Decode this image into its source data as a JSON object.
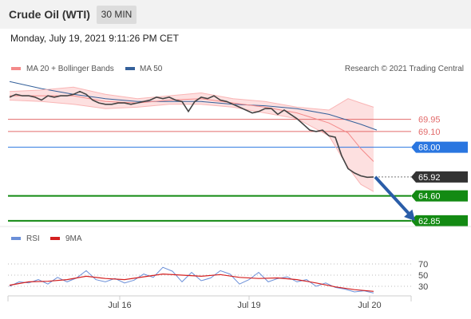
{
  "header": {
    "instrument": "Crude Oil (WTI)",
    "timeframe": "30 MIN"
  },
  "date_line": "Monday, July 19, 2021 9:11:26 PM CET",
  "colors": {
    "price": "#444444",
    "bollinger": "#f48a8a",
    "bollinger_fill": "#fde0e0",
    "ma50": "#34609a",
    "resistance": "#e26b6b",
    "pivot": "#2a76e0",
    "support": "#138a13",
    "arrow": "#2a5da8",
    "rsi": "#6b8fd8",
    "rsi_ma": "#d42020"
  },
  "chart_data": [
    {
      "type": "line",
      "legend": [
        {
          "name": "MA 20 + Bollinger Bands",
          "color": "#f48a8a"
        },
        {
          "name": "MA 50",
          "color": "#34609a"
        }
      ],
      "copyright": "Research © 2021 Trading Central",
      "x_ticks": [
        "Jul 16",
        "Jul 19",
        "Jul 20"
      ],
      "ylim": [
        62.4,
        73.0
      ],
      "levels": [
        {
          "value": 69.95,
          "label": "69.95",
          "role": "resistance"
        },
        {
          "value": 69.1,
          "label": "69.10",
          "role": "resistance"
        },
        {
          "value": 68.0,
          "label": "68.00",
          "role": "pivot"
        },
        {
          "value": 65.92,
          "label": "65.92",
          "role": "last"
        },
        {
          "value": 64.6,
          "label": "64.60",
          "role": "support"
        },
        {
          "value": 62.85,
          "label": "62.85",
          "role": "support"
        }
      ],
      "series": [
        {
          "role": "price",
          "x": [
            0,
            4,
            8,
            12,
            16,
            20,
            24,
            28,
            32,
            36,
            40,
            44,
            48,
            52,
            56,
            60,
            64,
            68,
            72,
            76,
            80,
            84,
            88,
            92,
            96,
            100,
            104,
            108,
            112,
            116,
            120,
            124,
            128,
            132,
            136,
            140,
            144,
            148,
            152,
            156,
            160,
            164,
            168,
            172,
            176,
            180,
            184,
            188,
            192,
            196,
            200,
            204,
            208,
            212,
            216,
            220,
            224,
            228
          ],
          "y": [
            71.5,
            71.7,
            71.6,
            71.6,
            71.5,
            71.3,
            71.6,
            71.5,
            71.6,
            71.6,
            71.7,
            71.9,
            71.7,
            71.3,
            71.1,
            71.0,
            71.0,
            71.1,
            71.1,
            71.0,
            71.1,
            71.2,
            71.3,
            71.5,
            71.4,
            71.5,
            71.3,
            71.2,
            70.5,
            71.2,
            71.5,
            71.4,
            71.6,
            71.3,
            71.2,
            71.0,
            70.8,
            70.6,
            70.4,
            70.5,
            70.7,
            70.7,
            70.3,
            70.6,
            70.3,
            70.0,
            69.6,
            69.2,
            69.1,
            69.2,
            68.8,
            68.7,
            67.4,
            66.5,
            66.2,
            66.0,
            65.9,
            65.92
          ]
        },
        {
          "role": "ma50",
          "x": [
            0,
            20,
            40,
            60,
            80,
            100,
            120,
            140,
            160,
            180,
            200,
            220,
            230
          ],
          "y": [
            72.6,
            72.1,
            71.7,
            71.4,
            71.2,
            71.2,
            71.2,
            71.0,
            70.9,
            70.7,
            70.3,
            69.6,
            69.2
          ]
        },
        {
          "role": "bb_mid",
          "x": [
            0,
            20,
            40,
            60,
            80,
            100,
            120,
            140,
            160,
            180,
            200,
            212,
            220,
            228
          ],
          "y": [
            71.6,
            71.6,
            71.6,
            71.2,
            71.1,
            71.3,
            71.4,
            71.1,
            70.8,
            70.4,
            69.7,
            69.0,
            67.9,
            67.0
          ]
        },
        {
          "role": "bb_upper",
          "x": [
            0,
            20,
            40,
            60,
            80,
            100,
            120,
            140,
            160,
            180,
            200,
            212,
            220,
            228
          ],
          "y": [
            71.9,
            72.0,
            72.2,
            71.7,
            71.4,
            71.6,
            71.8,
            71.4,
            71.2,
            70.8,
            70.6,
            71.4,
            71.1,
            70.8
          ]
        },
        {
          "role": "bb_lower",
          "x": [
            0,
            20,
            40,
            60,
            80,
            100,
            120,
            140,
            160,
            180,
            200,
            212,
            220,
            228
          ],
          "y": [
            71.3,
            71.2,
            71.0,
            70.7,
            70.8,
            71.0,
            71.0,
            70.8,
            70.4,
            70.0,
            68.8,
            66.6,
            65.4,
            64.9
          ]
        }
      ],
      "forecast_arrow": {
        "from": [
          229,
          65.92
        ],
        "to": [
          254,
          62.85
        ]
      }
    },
    {
      "type": "line",
      "legend": [
        {
          "name": "RSI",
          "color": "#6b8fd8"
        },
        {
          "name": "9MA",
          "color": "#d42020"
        }
      ],
      "ylim": [
        0,
        100
      ],
      "y_ticks": [
        70,
        50,
        30
      ],
      "series": [
        {
          "role": "rsi",
          "x": [
            0,
            6,
            12,
            18,
            24,
            30,
            36,
            42,
            48,
            54,
            60,
            66,
            72,
            78,
            84,
            90,
            96,
            102,
            108,
            114,
            120,
            126,
            132,
            138,
            144,
            150,
            156,
            162,
            168,
            174,
            180,
            186,
            192,
            198,
            204,
            210,
            216,
            222,
            228
          ],
          "y": [
            30,
            38,
            36,
            42,
            34,
            46,
            38,
            45,
            58,
            42,
            38,
            44,
            36,
            41,
            52,
            46,
            64,
            57,
            38,
            55,
            40,
            45,
            58,
            52,
            34,
            42,
            55,
            38,
            44,
            47,
            38,
            42,
            30,
            36,
            28,
            25,
            20,
            22,
            18
          ]
        },
        {
          "role": "rsi_ma",
          "x": [
            0,
            12,
            24,
            36,
            48,
            60,
            72,
            84,
            96,
            108,
            120,
            132,
            144,
            156,
            168,
            180,
            192,
            204,
            216,
            228
          ],
          "y": [
            32,
            38,
            39,
            42,
            48,
            44,
            42,
            47,
            52,
            50,
            48,
            51,
            46,
            44,
            45,
            42,
            36,
            29,
            24,
            21
          ]
        }
      ]
    }
  ]
}
